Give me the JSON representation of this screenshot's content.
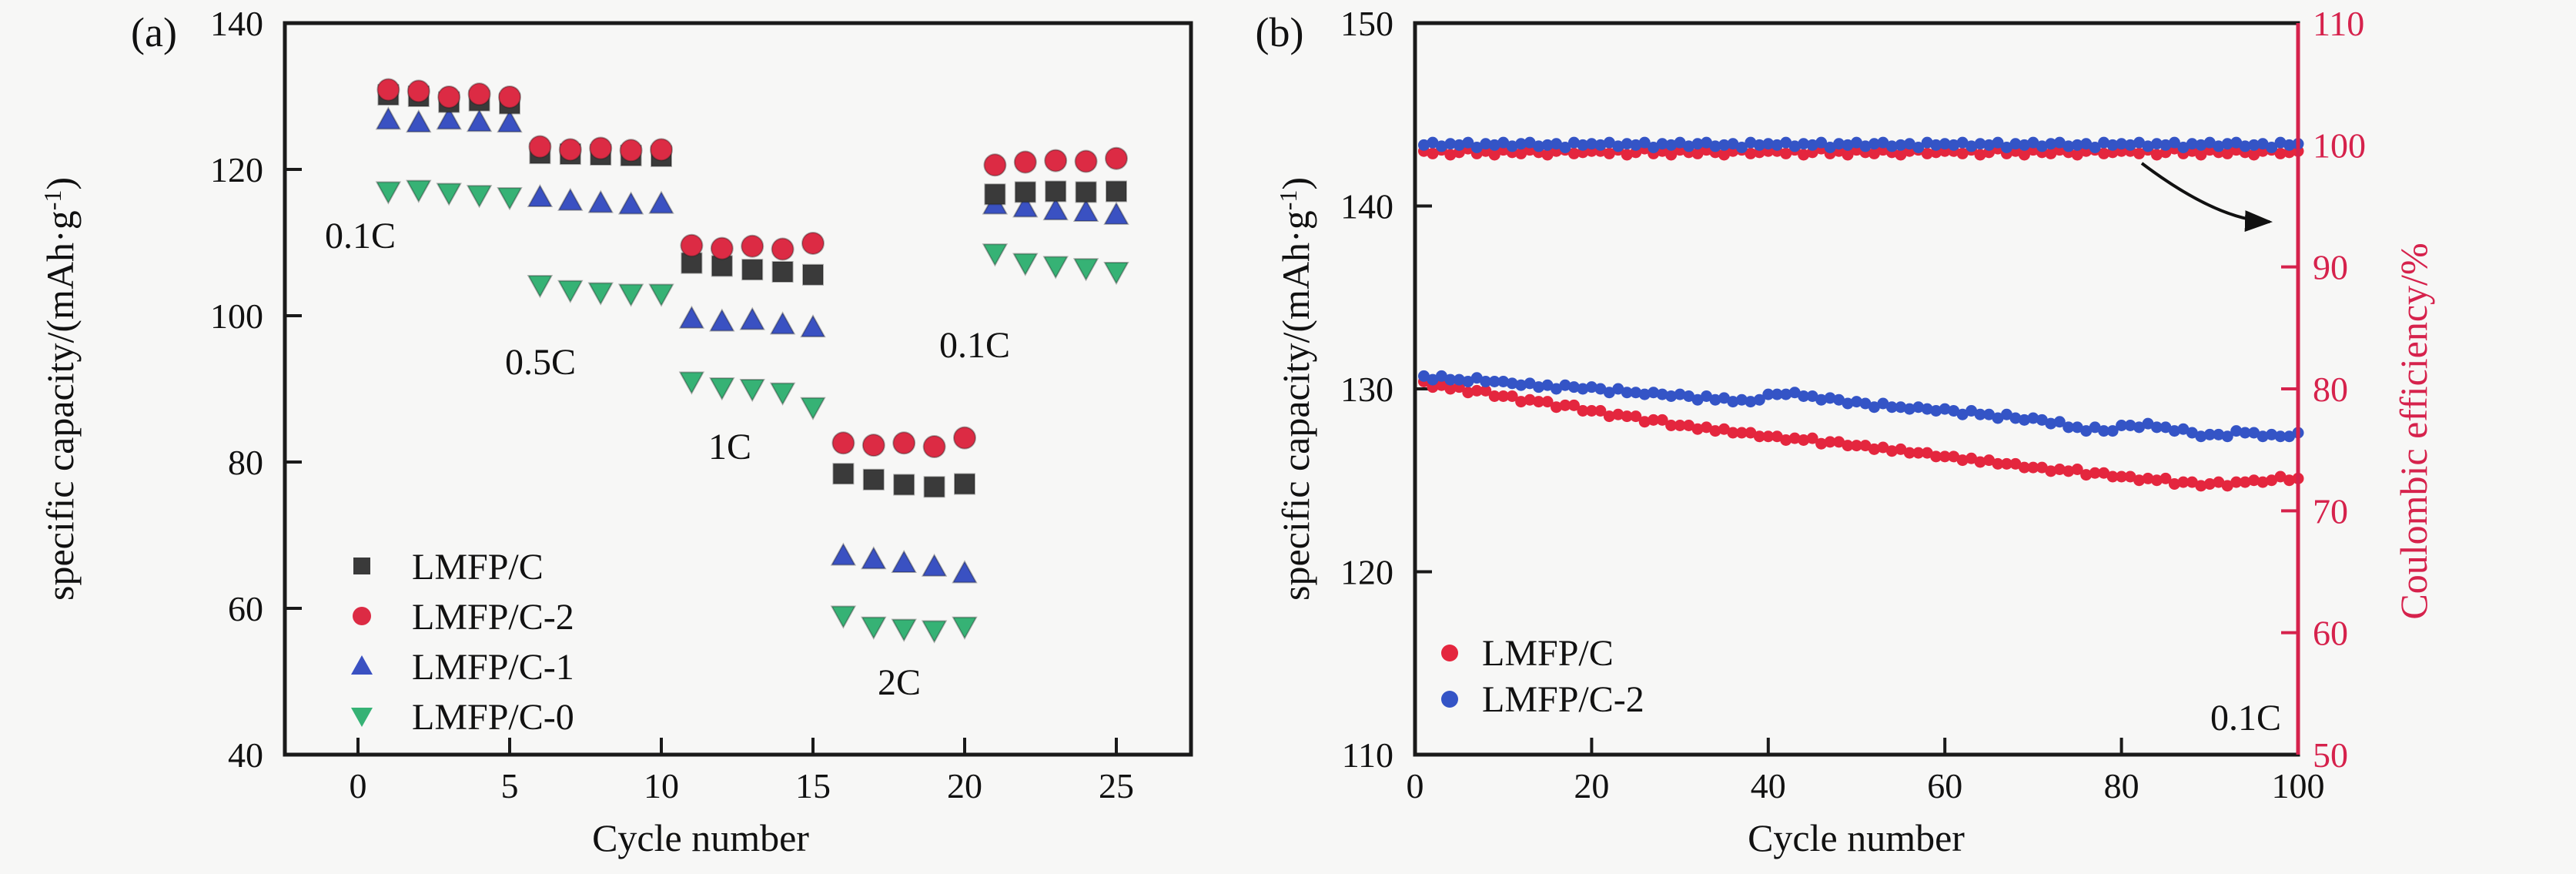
{
  "chart_data": [
    {
      "panel_label": "(a)",
      "type": "scatter",
      "xlabel": "Cycle number",
      "ylabel": {
        "main": "specific capacity/(mAh·g",
        "sup": "-1",
        "close": ")"
      },
      "x_ticks": [
        0,
        5,
        10,
        15,
        20,
        25
      ],
      "y_ticks": [
        40,
        60,
        80,
        100,
        120,
        140
      ],
      "xlim": [
        -2.5,
        27.5
      ],
      "ylim": [
        40,
        140
      ],
      "grid": false,
      "legend_position": "lower-left",
      "annotations": [
        {
          "text": "0.1C"
        },
        {
          "text": "0.5C"
        },
        {
          "text": "1C"
        },
        {
          "text": "2C"
        },
        {
          "text": "0.1C"
        }
      ],
      "cycles": [
        1,
        2,
        3,
        4,
        5,
        6,
        7,
        8,
        9,
        10,
        11,
        12,
        13,
        14,
        15,
        16,
        17,
        18,
        19,
        20,
        21,
        22,
        23,
        24,
        25
      ],
      "series": [
        {
          "name": "LMFP/C",
          "marker": "square",
          "color": "#3a3a3a",
          "values": [
            130.2,
            130.0,
            129.2,
            129.4,
            129.0,
            122.2,
            122.1,
            122.0,
            121.9,
            121.8,
            107.2,
            106.8,
            106.3,
            106.0,
            105.6,
            78.4,
            77.6,
            76.9,
            76.6,
            77.0,
            116.6,
            116.9,
            117.0,
            116.9,
            117.0
          ]
        },
        {
          "name": "LMFP/C-2",
          "marker": "circle",
          "color": "#dc2b44",
          "values": [
            130.9,
            130.7,
            129.9,
            130.3,
            129.9,
            123.1,
            122.7,
            122.9,
            122.6,
            122.7,
            109.6,
            109.2,
            109.5,
            109.1,
            109.9,
            82.6,
            82.3,
            82.6,
            82.1,
            83.3,
            120.6,
            121.0,
            121.2,
            121.1,
            121.5
          ]
        },
        {
          "name": "LMFP/C-1",
          "marker": "triangle-up",
          "color": "#3a51c2",
          "values": [
            126.7,
            126.3,
            126.7,
            126.4,
            126.3,
            116.1,
            115.6,
            115.3,
            115.1,
            115.2,
            99.5,
            99.1,
            99.3,
            98.7,
            98.3,
            67.1,
            66.6,
            66.1,
            65.6,
            64.7,
            115.1,
            114.7,
            114.3,
            114.1,
            113.7
          ]
        },
        {
          "name": "LMFP/C-0",
          "marker": "triangle-down",
          "color": "#36b275",
          "values": [
            117.1,
            117.3,
            116.9,
            116.6,
            116.3,
            104.3,
            103.6,
            103.3,
            103.1,
            103.1,
            91.1,
            90.3,
            90.1,
            89.6,
            87.6,
            59.1,
            57.6,
            57.3,
            57.1,
            57.6,
            108.6,
            107.3,
            106.9,
            106.6,
            106.1
          ]
        }
      ]
    },
    {
      "panel_label": "(b)",
      "type": "scatter-line",
      "xlabel": "Cycle number",
      "ylabel_left": {
        "main": "specific capacity/(mAh·g",
        "sup": "-1",
        "close": ")"
      },
      "ylabel_right": "Coulombic efficiency/%",
      "x_ticks": [
        0,
        20,
        40,
        60,
        80,
        100
      ],
      "y_ticks_left": [
        110,
        120,
        130,
        140,
        150
      ],
      "y_ticks_right": [
        50,
        60,
        70,
        80,
        90,
        100,
        110
      ],
      "xlim": [
        0,
        100
      ],
      "ylim_left": [
        110,
        150
      ],
      "ylim_right": [
        50,
        110
      ],
      "grid": false,
      "right_axis_color": "#d6224c",
      "annotations": [
        {
          "text": "0.1C"
        }
      ],
      "x_range": [
        1,
        100
      ],
      "series": [
        {
          "name": "LMFP/C",
          "axis": "left",
          "color": "#e4263e",
          "quantity": "specific capacity",
          "values": [
            130.4,
            130.1,
            130.2,
            130.0,
            130.1,
            129.8,
            129.9,
            129.9,
            129.6,
            129.6,
            129.6,
            129.3,
            129.4,
            129.3,
            129.3,
            129.0,
            129.1,
            129.1,
            128.8,
            128.8,
            128.8,
            128.5,
            128.6,
            128.5,
            128.5,
            128.2,
            128.3,
            128.3,
            128.0,
            128.0,
            128.0,
            127.8,
            127.9,
            127.7,
            127.8,
            127.6,
            127.6,
            127.6,
            127.4,
            127.4,
            127.4,
            127.2,
            127.3,
            127.2,
            127.3,
            127.0,
            127.1,
            127.1,
            126.9,
            126.9,
            126.9,
            126.7,
            126.8,
            126.6,
            126.7,
            126.5,
            126.5,
            126.5,
            126.3,
            126.3,
            126.3,
            126.1,
            126.2,
            126.0,
            126.1,
            125.9,
            125.9,
            125.9,
            125.7,
            125.7,
            125.7,
            125.5,
            125.6,
            125.5,
            125.6,
            125.3,
            125.4,
            125.4,
            125.2,
            125.2,
            125.2,
            125.0,
            125.1,
            125.0,
            125.1,
            124.8,
            124.9,
            124.9,
            124.7,
            124.8,
            124.9,
            124.7,
            124.9,
            124.9,
            125.0,
            124.9,
            125.0,
            125.2,
            125.0,
            125.1
          ]
        },
        {
          "name": "LMFP/C-2",
          "axis": "left",
          "color": "#3454c6",
          "quantity": "specific capacity",
          "values": [
            130.7,
            130.5,
            130.7,
            130.5,
            130.5,
            130.4,
            130.6,
            130.4,
            130.4,
            130.4,
            130.3,
            130.2,
            130.3,
            130.1,
            130.2,
            130.0,
            130.2,
            130.1,
            130.0,
            130.1,
            130.0,
            129.8,
            130.0,
            129.8,
            129.8,
            129.7,
            129.8,
            129.7,
            129.6,
            129.7,
            129.6,
            129.4,
            129.6,
            129.4,
            129.5,
            129.3,
            129.4,
            129.3,
            129.4,
            129.7,
            129.7,
            129.7,
            129.8,
            129.6,
            129.6,
            129.4,
            129.5,
            129.4,
            129.2,
            129.3,
            129.2,
            129.0,
            129.2,
            129.0,
            129.0,
            128.9,
            129.0,
            128.9,
            128.8,
            128.9,
            128.8,
            128.6,
            128.8,
            128.6,
            128.6,
            128.4,
            128.6,
            128.4,
            128.3,
            128.4,
            128.3,
            128.1,
            128.2,
            127.9,
            127.9,
            127.7,
            127.9,
            127.7,
            127.7,
            128.0,
            128.0,
            127.9,
            128.1,
            127.9,
            127.9,
            127.7,
            127.8,
            127.6,
            127.4,
            127.5,
            127.5,
            127.4,
            127.7,
            127.6,
            127.6,
            127.4,
            127.5,
            127.4,
            127.4,
            127.6
          ]
        },
        {
          "name": "LMFP/C coulombic efficiency",
          "axis": "right",
          "color": "#e4263e",
          "quantity": "coulombic efficiency",
          "values": [
            99.5,
            99.3,
            99.6,
            99.2,
            99.4,
            99.7,
            99.3,
            99.5,
            99.2,
            99.6,
            99.4,
            99.3,
            99.6,
            99.4,
            99.2,
            99.5,
            99.6,
            99.3,
            99.4,
            99.5,
            99.5,
            99.3,
            99.6,
            99.2,
            99.4,
            99.7,
            99.3,
            99.5,
            99.2,
            99.6,
            99.4,
            99.3,
            99.6,
            99.4,
            99.2,
            99.5,
            99.6,
            99.3,
            99.4,
            99.5,
            99.5,
            99.3,
            99.6,
            99.2,
            99.4,
            99.7,
            99.3,
            99.5,
            99.2,
            99.6,
            99.4,
            99.3,
            99.6,
            99.4,
            99.2,
            99.5,
            99.6,
            99.3,
            99.4,
            99.5,
            99.5,
            99.3,
            99.6,
            99.2,
            99.4,
            99.7,
            99.3,
            99.5,
            99.2,
            99.6,
            99.4,
            99.3,
            99.6,
            99.4,
            99.2,
            99.5,
            99.6,
            99.3,
            99.4,
            99.5,
            99.5,
            99.3,
            99.6,
            99.2,
            99.4,
            99.7,
            99.3,
            99.5,
            99.2,
            99.6,
            99.4,
            99.3,
            99.6,
            99.4,
            99.2,
            99.5,
            99.6,
            99.3,
            99.4,
            99.5
          ]
        },
        {
          "name": "LMFP/C-2 coulombic efficiency",
          "axis": "right",
          "color": "#3454c6",
          "quantity": "coulombic efficiency",
          "values": [
            100.0,
            100.2,
            99.9,
            100.1,
            100.0,
            100.2,
            99.8,
            100.1,
            100.0,
            100.2,
            99.9,
            100.1,
            100.2,
            99.9,
            100.0,
            100.1,
            99.8,
            100.2,
            100.0,
            100.1,
            100.0,
            100.2,
            99.9,
            100.1,
            100.0,
            100.2,
            99.8,
            100.1,
            100.0,
            100.2,
            99.9,
            100.1,
            100.2,
            99.9,
            100.0,
            100.1,
            99.8,
            100.2,
            100.0,
            100.1,
            100.0,
            100.2,
            99.9,
            100.1,
            100.0,
            100.2,
            99.8,
            100.1,
            100.0,
            100.2,
            99.9,
            100.1,
            100.2,
            99.9,
            100.0,
            100.1,
            99.8,
            100.2,
            100.0,
            100.1,
            100.0,
            100.2,
            99.9,
            100.1,
            100.0,
            100.2,
            99.8,
            100.1,
            100.0,
            100.2,
            99.9,
            100.1,
            100.2,
            99.9,
            100.0,
            100.1,
            99.8,
            100.2,
            100.0,
            100.1,
            100.0,
            100.2,
            99.9,
            100.1,
            100.0,
            100.2,
            99.8,
            100.1,
            100.0,
            100.2,
            99.9,
            100.1,
            100.2,
            99.9,
            100.0,
            100.1,
            99.8,
            100.2,
            100.0,
            100.1
          ]
        }
      ],
      "legend": [
        {
          "label": "LMFP/C"
        },
        {
          "label": "LMFP/C-2"
        }
      ]
    }
  ]
}
